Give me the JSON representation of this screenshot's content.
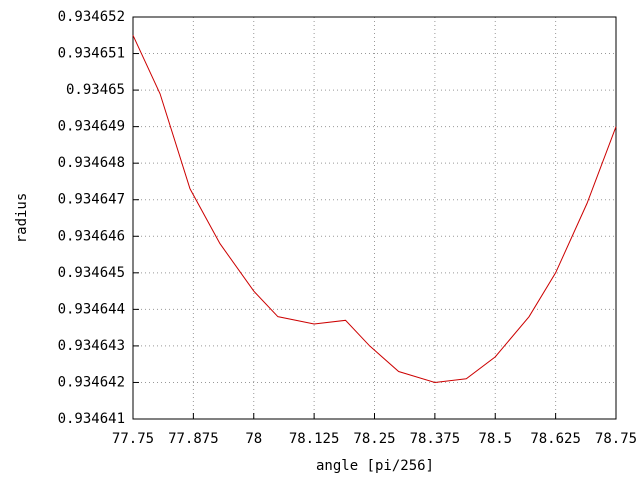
{
  "chart_data": {
    "type": "line",
    "x_label": "angle [pi/256]",
    "y_label": "radius",
    "x": [
      77.75,
      77.806,
      77.868,
      77.93,
      78.0,
      78.05,
      78.125,
      78.19,
      78.24,
      78.3,
      78.375,
      78.44,
      78.5,
      78.57,
      78.625,
      78.69,
      78.75
    ],
    "series": [
      {
        "color": "#cc0000",
        "values": [
          0.9346515,
          0.9346499,
          0.9346473,
          0.9346458,
          0.9346445,
          0.9346438,
          0.9346436,
          0.9346437,
          0.934643,
          0.9346423,
          0.934642,
          0.9346421,
          0.9346427,
          0.9346438,
          0.934645,
          0.9346469,
          0.934649
        ]
      }
    ],
    "xlim": [
      77.75,
      78.75
    ],
    "xticks": [
      77.75,
      77.875,
      78,
      78.125,
      78.25,
      78.375,
      78.5,
      78.625,
      78.75
    ],
    "ylim": [
      0.934641,
      0.934652
    ],
    "yticks": [
      0.934641,
      0.934642,
      0.934643,
      0.934644,
      0.934645,
      0.934646,
      0.934647,
      0.934648,
      0.934649,
      0.93465,
      0.934651,
      0.934652
    ],
    "grid": true
  }
}
